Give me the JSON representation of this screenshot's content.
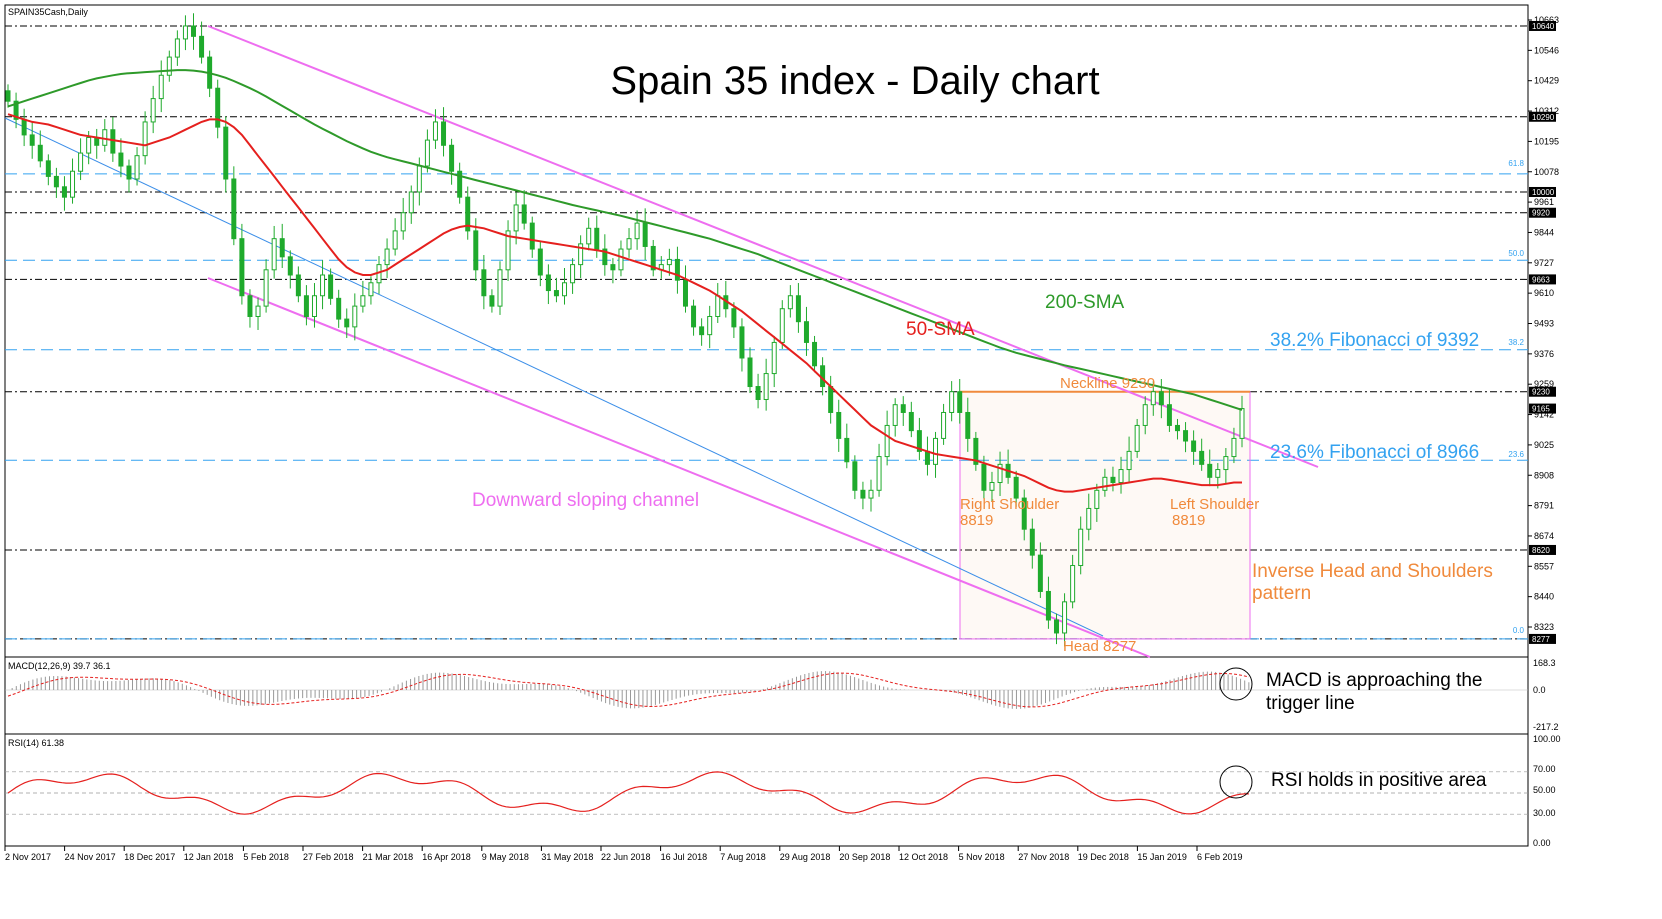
{
  "header": {
    "symbol": "SPAIN35Cash,Daily",
    "title": "Spain 35 index - Daily chart"
  },
  "colors": {
    "ma50": "#e5201e",
    "ma200": "#2e9a2a",
    "channel": "#ee6ef0",
    "fib": "#33a2f0",
    "pattern": "#f08a3c",
    "trend": "#3b8ee8",
    "candle": "#1faa2c",
    "bear_candle": "#d62020"
  },
  "annotations": {
    "sma200": "200-SMA",
    "sma50": "50-SMA",
    "fib382": "38.2% Fibonacci of 9392",
    "fib236": "23.6% Fibonacci of 8966",
    "channel": "Downward sloping channel",
    "neckline": "Neckline 9230",
    "right_shoulder_1": "Right Shoulder",
    "right_shoulder_2": "8819",
    "left_shoulder_1": "Left Shoulder",
    "left_shoulder_2": "8819",
    "head": "Head 8277",
    "pattern_1": "Inverse Head and Shoulders",
    "pattern_2": "pattern",
    "macd_note_1": "MACD is approaching the",
    "macd_note_2": "trigger line",
    "rsi_note": "RSI holds in positive area"
  },
  "fib_levels": {
    "f618": "61.8",
    "f500": "50.0",
    "f382": "38.2",
    "f236": "23.6",
    "f000": "0.0"
  },
  "panels": {
    "macd": {
      "label": "MACD(12,26,9) 39.7 36.1",
      "ticks": [
        "168.3",
        "0.0",
        "-217.2"
      ]
    },
    "rsi": {
      "label": "RSI(14) 61.38",
      "ticks": [
        "100.00",
        "70.00",
        "50.00",
        "30.00",
        "0.00"
      ]
    }
  },
  "chart_data": {
    "type": "candlestick",
    "instrument": "SPAIN35Cash",
    "timeframe": "Daily",
    "price_axis_ticks": [
      10663,
      10546,
      10429,
      10312,
      10195,
      10078,
      9961,
      9844,
      9727,
      9610,
      9493,
      9376,
      9259,
      9142,
      9025,
      8908,
      8791,
      8674,
      8557,
      8440,
      8323
    ],
    "highlighted_levels": [
      10640,
      10290,
      10000,
      9920,
      9663,
      9230,
      9165,
      8620,
      8277
    ],
    "dashed_levels": [
      10640,
      10290,
      10000,
      9920,
      9663,
      9230,
      8620,
      8277
    ],
    "fibonacci": [
      {
        "label": "61.8",
        "value": 10070
      },
      {
        "label": "50.0",
        "value": 9737
      },
      {
        "label": "38.2",
        "value": 9392
      },
      {
        "label": "23.6",
        "value": 8966
      },
      {
        "label": "0.0",
        "value": 8277
      }
    ],
    "x_labels": [
      "2 Nov 2017",
      "24 Nov 2017",
      "18 Dec 2017",
      "12 Jan 2018",
      "5 Feb 2018",
      "27 Feb 2018",
      "21 Mar 2018",
      "16 Apr 2018",
      "9 May 2018",
      "31 May 2018",
      "22 Jun 2018",
      "16 Jul 2018",
      "7 Aug 2018",
      "29 Aug 2018",
      "20 Sep 2018",
      "12 Oct 2018",
      "5 Nov 2018",
      "27 Nov 2018",
      "19 Dec 2018",
      "15 Jan 2019",
      "6 Feb 2019"
    ],
    "closes": [
      10350,
      10280,
      10220,
      10180,
      10120,
      10060,
      10020,
      9980,
      10080,
      10150,
      10210,
      10180,
      10240,
      10150,
      10100,
      10050,
      10140,
      10270,
      10360,
      10450,
      10520,
      10590,
      10640,
      10600,
      10520,
      10400,
      10250,
      10050,
      9820,
      9600,
      9520,
      9560,
      9700,
      9820,
      9750,
      9680,
      9600,
      9520,
      9600,
      9680,
      9590,
      9510,
      9480,
      9560,
      9600,
      9650,
      9720,
      9780,
      9850,
      9920,
      10000,
      10100,
      10200,
      10270,
      10180,
      10080,
      9980,
      9850,
      9700,
      9600,
      9560,
      9700,
      9850,
      9950,
      9880,
      9780,
      9680,
      9620,
      9600,
      9650,
      9720,
      9800,
      9860,
      9780,
      9720,
      9700,
      9780,
      9820,
      9880,
      9790,
      9700,
      9720,
      9740,
      9660,
      9560,
      9480,
      9450,
      9520,
      9600,
      9550,
      9480,
      9360,
      9250,
      9200,
      9300,
      9420,
      9550,
      9600,
      9500,
      9420,
      9330,
      9250,
      9150,
      9050,
      8960,
      8850,
      8820,
      8850,
      8980,
      9100,
      9180,
      9150,
      9080,
      9000,
      8950,
      9050,
      9150,
      9230,
      9150,
      9050,
      8950,
      8850,
      8880,
      8950,
      8900,
      8820,
      8700,
      8600,
      8460,
      8350,
      8300,
      8420,
      8560,
      8700,
      8780,
      8850,
      8900,
      8880,
      8930,
      9000,
      9100,
      9180,
      9230,
      9180,
      9100,
      9080,
      9040,
      9000,
      8950,
      8900,
      8930,
      8980,
      9050,
      9165
    ],
    "sma50": [
      10300,
      10290,
      10280,
      10270,
      10265,
      10260,
      10250,
      10240,
      10230,
      10220,
      10215,
      10210,
      10205,
      10200,
      10195,
      10190,
      10185,
      10180,
      10190,
      10200,
      10210,
      10225,
      10240,
      10255,
      10270,
      10280,
      10280,
      10270,
      10250,
      10220,
      10180,
      10140,
      10100,
      10060,
      10020,
      9980,
      9940,
      9900,
      9860,
      9820,
      9780,
      9740,
      9710,
      9690,
      9680,
      9680,
      9690,
      9700,
      9720,
      9740,
      9760,
      9780,
      9800,
      9820,
      9840,
      9855,
      9865,
      9870,
      9865,
      9860,
      9850,
      9840,
      9830,
      9825,
      9820,
      9815,
      9810,
      9805,
      9800,
      9795,
      9790,
      9785,
      9780,
      9775,
      9770,
      9760,
      9750,
      9740,
      9730,
      9720,
      9710,
      9700,
      9690,
      9680,
      9665,
      9650,
      9635,
      9620,
      9600,
      9580,
      9560,
      9540,
      9515,
      9490,
      9465,
      9440,
      9415,
      9390,
      9365,
      9340,
      9310,
      9280,
      9250,
      9220,
      9190,
      9160,
      9130,
      9100,
      9080,
      9060,
      9040,
      9030,
      9020,
      9010,
      9000,
      8990,
      8985,
      8980,
      8975,
      8970,
      8965,
      8955,
      8945,
      8935,
      8925,
      8915,
      8905,
      8890,
      8875,
      8860,
      8850,
      8845,
      8845,
      8850,
      8855,
      8860,
      8865,
      8870,
      8875,
      8880,
      8885,
      8890,
      8895,
      8895,
      8890,
      8885,
      8880,
      8875,
      8870,
      8870,
      8870,
      8875,
      8880,
      8880
    ],
    "sma200": [
      10330,
      10340,
      10350,
      10360,
      10370,
      10380,
      10390,
      10400,
      10410,
      10420,
      10430,
      10438,
      10444,
      10450,
      10455,
      10458,
      10460,
      10462,
      10464,
      10466,
      10468,
      10470,
      10470,
      10468,
      10464,
      10458,
      10450,
      10440,
      10428,
      10414,
      10400,
      10385,
      10368,
      10350,
      10332,
      10314,
      10296,
      10278,
      10260,
      10244,
      10228,
      10212,
      10196,
      10182,
      10168,
      10155,
      10144,
      10134,
      10126,
      10118,
      10110,
      10102,
      10094,
      10086,
      10078,
      10070,
      10062,
      10054,
      10046,
      10038,
      10030,
      10022,
      10014,
      10006,
      9998,
      9990,
      9982,
      9974,
      9966,
      9958,
      9950,
      9943,
      9936,
      9929,
      9922,
      9915,
      9908,
      9900,
      9892,
      9884,
      9876,
      9868,
      9860,
      9852,
      9844,
      9836,
      9828,
      9820,
      9810,
      9800,
      9790,
      9780,
      9770,
      9760,
      9748,
      9736,
      9724,
      9712,
      9700,
      9688,
      9676,
      9664,
      9652,
      9640,
      9628,
      9616,
      9604,
      9592,
      9580,
      9568,
      9556,
      9544,
      9532,
      9520,
      9508,
      9496,
      9484,
      9472,
      9460,
      9448,
      9436,
      9424,
      9412,
      9400,
      9390,
      9380,
      9372,
      9364,
      9356,
      9348,
      9340,
      9332,
      9325,
      9318,
      9311,
      9304,
      9297,
      9290,
      9283,
      9276,
      9269,
      9262,
      9255,
      9248,
      9241,
      9234,
      9227,
      9220,
      9210,
      9200,
      9190,
      9180,
      9170,
      9160
    ],
    "macd": {
      "macd": 39.7,
      "signal": 36.1,
      "range": [
        -217.2,
        168.3
      ]
    },
    "rsi": {
      "value": 61.38,
      "levels": [
        30,
        50,
        70
      ],
      "range": [
        0,
        100
      ]
    }
  }
}
